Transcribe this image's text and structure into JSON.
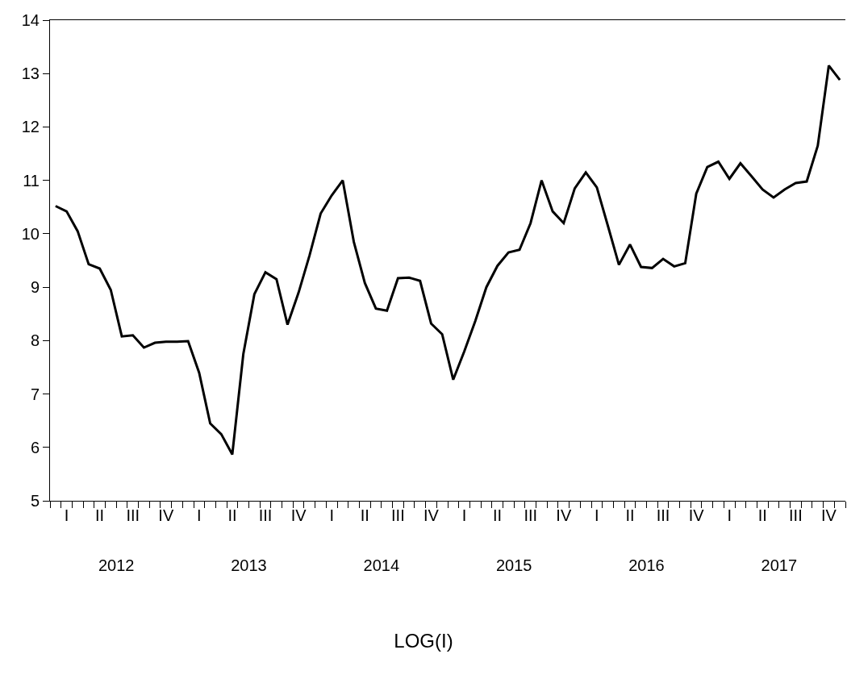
{
  "chart_data": {
    "type": "line",
    "title": "LOG(I)",
    "categories": [
      null,
      "I",
      null,
      null,
      "II",
      null,
      null,
      "III",
      null,
      null,
      "IV",
      null,
      null,
      "I",
      null,
      null,
      "II",
      null,
      null,
      "III",
      null,
      null,
      "IV",
      null,
      null,
      "I",
      null,
      null,
      "II",
      null,
      null,
      "III",
      null,
      null,
      "IV",
      null,
      null,
      "I",
      null,
      null,
      "II",
      null,
      null,
      "III",
      null,
      null,
      "IV",
      null,
      null,
      "I",
      null,
      null,
      "II",
      null,
      null,
      "III",
      null,
      null,
      "IV",
      null,
      null,
      "I",
      null,
      null,
      "II",
      null,
      null,
      "III",
      null,
      null,
      "IV",
      null
    ],
    "series": [
      {
        "color": "#000000",
        "values": [
          10.52,
          10.42,
          10.05,
          9.43,
          9.35,
          8.95,
          8.08,
          8.1,
          7.87,
          7.96,
          7.98,
          7.98,
          7.99,
          7.4,
          6.45,
          6.25,
          5.87,
          7.75,
          8.87,
          9.28,
          9.15,
          8.3,
          8.9,
          9.6,
          10.38,
          10.72,
          11.0,
          9.85,
          9.08,
          8.6,
          8.56,
          9.17,
          9.18,
          9.12,
          8.32,
          8.12,
          7.27,
          7.8,
          8.37,
          9.0,
          9.4,
          9.65,
          9.7,
          10.2,
          11.0,
          10.42,
          10.2,
          10.85,
          11.15,
          10.87,
          10.15,
          9.42,
          9.8,
          9.38,
          9.36,
          9.53,
          9.39,
          9.45,
          10.75,
          11.25,
          11.35,
          11.03,
          11.32,
          11.08,
          10.83,
          10.68,
          10.83,
          10.95,
          10.98,
          11.65,
          13.15,
          12.88
        ]
      }
    ],
    "x2lim": [
      2012,
      2018
    ],
    "x2ticks": [
      {
        "value": 2012.5,
        "label": "2012"
      },
      {
        "value": 2013.5,
        "label": "2013"
      },
      {
        "value": 2014.5,
        "label": "2014"
      },
      {
        "value": 2015.5,
        "label": "2015"
      },
      {
        "value": 2016.5,
        "label": "2016"
      },
      {
        "value": 2017.5,
        "label": "2017"
      }
    ],
    "ylim": [
      5,
      14
    ],
    "yticks": [
      5,
      6,
      7,
      8,
      9,
      10,
      11,
      12,
      13,
      14
    ],
    "marker": "none",
    "line_style": "solid"
  }
}
